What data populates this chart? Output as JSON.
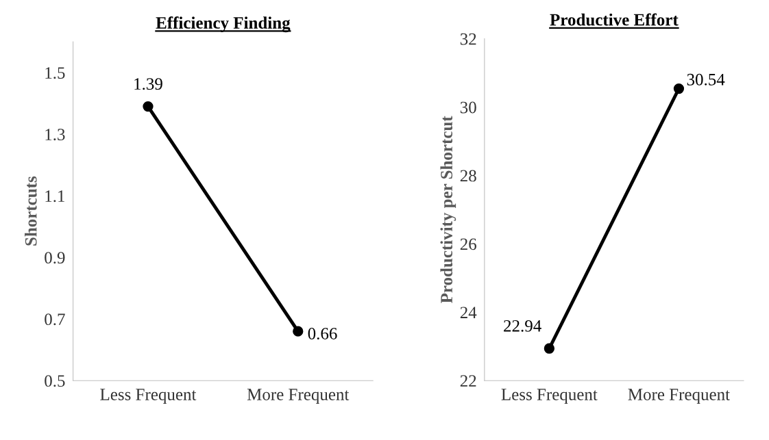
{
  "chart_data": [
    {
      "type": "line",
      "title": "Efficiency Finding",
      "ylabel": "Shortcuts",
      "categories": [
        "Less Frequent",
        "More Frequent"
      ],
      "series": [
        {
          "color": "#000000",
          "values": [
            1.39,
            0.66
          ]
        }
      ],
      "ylim": [
        0.5,
        1.6
      ],
      "yticks": [
        0.5,
        0.7,
        0.9,
        1.1,
        1.3,
        1.5
      ],
      "marker": "circle",
      "line_style": "solid",
      "data_labels": true,
      "grid": false,
      "legend": false
    },
    {
      "type": "line",
      "title": "Productive Effort",
      "ylabel": "Productivity per Shortcut",
      "categories": [
        "Less Frequent",
        "More Frequent"
      ],
      "series": [
        {
          "color": "#000000",
          "values": [
            22.94,
            30.54
          ]
        }
      ],
      "ylim": [
        22,
        32
      ],
      "yticks": [
        22,
        24,
        26,
        28,
        30,
        32
      ],
      "marker": "circle",
      "line_style": "solid",
      "data_labels": true,
      "grid": false,
      "legend": false
    }
  ]
}
